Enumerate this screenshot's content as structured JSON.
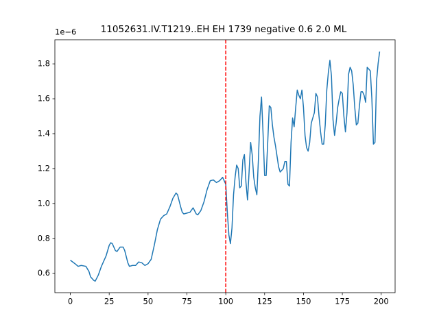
{
  "chart_data": {
    "type": "line",
    "title": "11052631.IV.T1219..EH EH 1739 negative 0.6 2.0 ML",
    "y_offset_label": "1e−6",
    "x": [
      0,
      3,
      5,
      7,
      10,
      12,
      13,
      15,
      16,
      18,
      20,
      23,
      25,
      26,
      27,
      29,
      30,
      32,
      34,
      35,
      37,
      38,
      40,
      42,
      44,
      46,
      48,
      50,
      52,
      54,
      56,
      58,
      60,
      62,
      64,
      66,
      68,
      69,
      71,
      72,
      73,
      75,
      77,
      79,
      81,
      82,
      84,
      86,
      88,
      90,
      92,
      94,
      96,
      98,
      99,
      100,
      101,
      102,
      103,
      104,
      105,
      106,
      107,
      108,
      109,
      110,
      111,
      112,
      113,
      114,
      115,
      116,
      117,
      118,
      119,
      120,
      121,
      122,
      123,
      124,
      125,
      126,
      127,
      128,
      129,
      130,
      131,
      132,
      133,
      134,
      135,
      136,
      137,
      138,
      139,
      140,
      141,
      142,
      143,
      144,
      145,
      146,
      147,
      148,
      149,
      150,
      151,
      152,
      153,
      154,
      155,
      156,
      157,
      158,
      159,
      160,
      161,
      162,
      163,
      164,
      165,
      166,
      167,
      168,
      169,
      170,
      171,
      172,
      173,
      174,
      175,
      176,
      177,
      178,
      179,
      180,
      181,
      182,
      183,
      184,
      185,
      186,
      187,
      188,
      189,
      190,
      191,
      192,
      193,
      194,
      195,
      196,
      197,
      198,
      199
    ],
    "series": [
      {
        "color": "#1f77b4",
        "values": [
          0.675,
          0.655,
          0.64,
          0.645,
          0.64,
          0.61,
          0.58,
          0.56,
          0.555,
          0.59,
          0.64,
          0.7,
          0.76,
          0.775,
          0.77,
          0.73,
          0.725,
          0.75,
          0.75,
          0.73,
          0.66,
          0.64,
          0.645,
          0.645,
          0.665,
          0.66,
          0.645,
          0.655,
          0.68,
          0.76,
          0.85,
          0.91,
          0.93,
          0.94,
          0.98,
          1.03,
          1.06,
          1.05,
          0.98,
          0.95,
          0.94,
          0.945,
          0.95,
          0.975,
          0.94,
          0.935,
          0.96,
          1.01,
          1.08,
          1.13,
          1.135,
          1.12,
          1.13,
          1.15,
          1.13,
          1.11,
          0.95,
          0.82,
          0.77,
          0.86,
          1.05,
          1.15,
          1.22,
          1.2,
          1.09,
          1.1,
          1.25,
          1.28,
          1.12,
          1.02,
          1.18,
          1.35,
          1.28,
          1.15,
          1.09,
          1.05,
          1.25,
          1.5,
          1.61,
          1.4,
          1.16,
          1.16,
          1.35,
          1.56,
          1.55,
          1.45,
          1.38,
          1.33,
          1.27,
          1.21,
          1.18,
          1.19,
          1.2,
          1.24,
          1.24,
          1.11,
          1.1,
          1.35,
          1.49,
          1.44,
          1.55,
          1.65,
          1.62,
          1.6,
          1.65,
          1.55,
          1.39,
          1.32,
          1.3,
          1.35,
          1.46,
          1.49,
          1.52,
          1.63,
          1.61,
          1.5,
          1.41,
          1.34,
          1.34,
          1.45,
          1.65,
          1.75,
          1.82,
          1.73,
          1.48,
          1.39,
          1.46,
          1.55,
          1.6,
          1.64,
          1.63,
          1.5,
          1.41,
          1.52,
          1.74,
          1.78,
          1.76,
          1.68,
          1.55,
          1.45,
          1.46,
          1.56,
          1.64,
          1.64,
          1.62,
          1.58,
          1.78,
          1.77,
          1.76,
          1.6,
          1.34,
          1.35,
          1.7,
          1.8,
          1.87
        ]
      }
    ],
    "vline": {
      "x": 100,
      "color": "#ff0000"
    },
    "xlim": [
      -9.95,
      208.95
    ],
    "xticks": [
      0,
      25,
      50,
      75,
      100,
      125,
      150,
      175,
      200
    ],
    "ylim": [
      0.489,
      1.938
    ],
    "yticks": [
      0.6,
      0.8,
      {
        "value": 1,
        "label": "1.0"
      },
      1.2,
      1.4,
      1.6,
      1.8
    ],
    "grid": false
  }
}
